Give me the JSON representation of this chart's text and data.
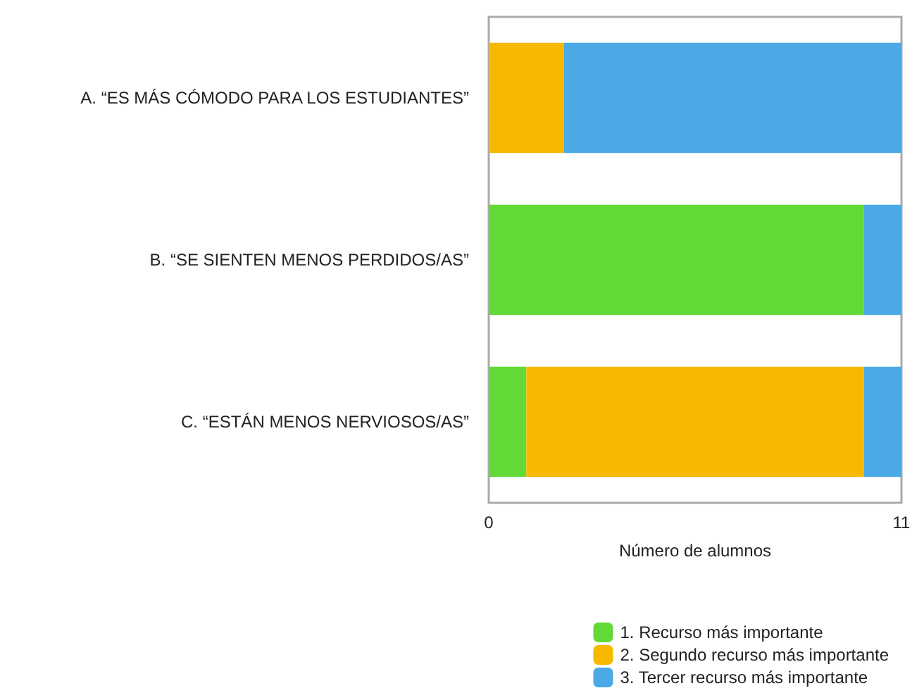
{
  "chart_data": {
    "type": "bar",
    "orientation": "horizontal",
    "stacked": true,
    "xlabel": "Número de alumnos",
    "categories": [
      "A. “ES MÁS CÓMODO PARA LOS ESTUDIANTES”",
      "B. “SE SIENTEN MENOS PERDIDOS/AS”",
      "C. “ESTÁN MENOS NERVIOSOS/AS”"
    ],
    "series": [
      {
        "name": "1. Recurso más importante",
        "color": "#62d937",
        "values": [
          0,
          10,
          1
        ]
      },
      {
        "name": "2. Segundo recurso más importante",
        "color": "#f6b900",
        "values": [
          2,
          0,
          9
        ]
      },
      {
        "name": "3. Tercer recurso más importante",
        "color": "#4ba9e6",
        "values": [
          9,
          1,
          1
        ]
      }
    ],
    "xlim": [
      0,
      11
    ],
    "xticks": [
      0,
      11
    ],
    "grid": false,
    "legend": "bottom right"
  }
}
